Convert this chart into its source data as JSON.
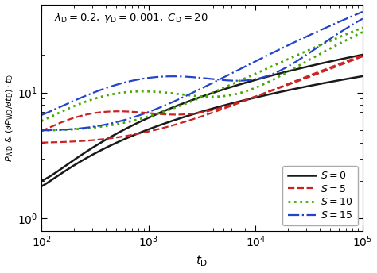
{
  "xlabel": "$t_{\\mathrm{D}}$",
  "ylabel": "$P_{\\mathrm{WD}}$ & $(\\partial P_{\\mathrm{WD}}/\\partial t_{\\mathrm{D}})\\cdot t_{\\mathrm{D}}$",
  "xlim": [
    100,
    100000
  ],
  "ylim": [
    0.8,
    50
  ],
  "background_color": "#ffffff",
  "annotation": "$\\lambda_{\\mathrm{D}}=0.2,\\;\\gamma_{\\mathrm{D}}=0.001,\\;C_{\\mathrm{D}}=20$",
  "legend": [
    {
      "label": "$S=0$",
      "color": "#1a1a1a",
      "linestyle": "solid",
      "linewidth": 1.8
    },
    {
      "label": "$S=5$",
      "color": "#cc2222",
      "linestyle": "dashed",
      "linewidth": 1.6
    },
    {
      "label": "$S=10$",
      "color": "#44aa00",
      "linestyle": "dotted",
      "linewidth": 2.0
    },
    {
      "label": "$S=15$",
      "color": "#2244cc",
      "linestyle": "dashdot",
      "linewidth": 1.6
    }
  ]
}
